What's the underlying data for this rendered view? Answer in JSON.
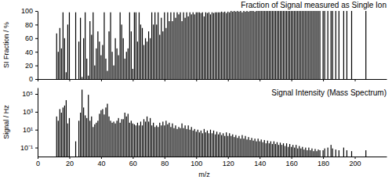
{
  "chart_data": [
    {
      "type": "bar",
      "title": "Fraction of Signal measured as Single Ion",
      "ylabel": "SI Fraction / %",
      "color": "#000000",
      "xlim": [
        0,
        220
      ],
      "xticks": [
        0,
        20,
        40,
        60,
        80,
        100,
        120,
        140,
        160,
        180,
        200
      ],
      "ylim": [
        0,
        100
      ],
      "yticks": [
        0,
        20,
        40,
        60,
        80,
        100
      ],
      "tick_labels": "y",
      "x": [
        12,
        13,
        14,
        15,
        16,
        17,
        18,
        19,
        20,
        24,
        26,
        27,
        28,
        29,
        30,
        31,
        32,
        33,
        34,
        35,
        36,
        37,
        38,
        39,
        40,
        41,
        42,
        43,
        44,
        45,
        46,
        47,
        48,
        49,
        50,
        51,
        52,
        53,
        54,
        55,
        56,
        57,
        58,
        59,
        60,
        61,
        62,
        63,
        64,
        65,
        66,
        67,
        68,
        69,
        70,
        71,
        72,
        73,
        74,
        75,
        76,
        77,
        78,
        79,
        80,
        81,
        82,
        83,
        84,
        85,
        86,
        87,
        88,
        89,
        90,
        91,
        92,
        93,
        94,
        95,
        96,
        97,
        98,
        99,
        100,
        101,
        102,
        103,
        104,
        105,
        106,
        107,
        108,
        109,
        110,
        111,
        112,
        113,
        114,
        115,
        116,
        117,
        118,
        119,
        120,
        121,
        122,
        123,
        124,
        125,
        126,
        127,
        128,
        129,
        130,
        131,
        132,
        133,
        134,
        135,
        136,
        137,
        138,
        139,
        140,
        141,
        142,
        143,
        144,
        145,
        146,
        147,
        148,
        149,
        150,
        151,
        152,
        153,
        154,
        155,
        156,
        157,
        158,
        159,
        160,
        161,
        162,
        163,
        164,
        165,
        166,
        167,
        168,
        169,
        170,
        171,
        172,
        173,
        174,
        175,
        176,
        177,
        178,
        180,
        181,
        183,
        185,
        186,
        188,
        190,
        193,
        195,
        198,
        207
      ],
      "values": [
        67,
        40,
        75,
        45,
        98,
        60,
        10,
        80,
        98,
        98,
        55,
        90,
        3,
        60,
        98,
        30,
        5,
        85,
        65,
        98,
        20,
        45,
        70,
        55,
        35,
        50,
        98,
        30,
        12,
        70,
        98,
        40,
        20,
        60,
        45,
        35,
        98,
        80,
        60,
        30,
        40,
        45,
        98,
        70,
        15,
        98,
        98,
        55,
        98,
        80,
        75,
        50,
        60,
        55,
        70,
        60,
        98,
        80,
        98,
        80,
        98,
        65,
        90,
        70,
        98,
        75,
        98,
        85,
        98,
        85,
        98,
        90,
        98,
        95,
        98,
        85,
        98,
        90,
        98,
        92,
        98,
        95,
        98,
        95,
        98,
        98,
        98,
        97,
        98,
        92,
        98,
        97,
        98,
        95,
        98,
        97,
        98,
        98,
        98,
        98,
        99,
        98,
        99,
        97,
        99,
        98,
        100,
        99,
        100,
        99,
        100,
        99,
        100,
        98,
        100,
        99,
        100,
        99,
        100,
        100,
        100,
        99,
        100,
        100,
        100,
        100,
        100,
        100,
        100,
        100,
        100,
        100,
        100,
        100,
        100,
        100,
        100,
        100,
        100,
        100,
        100,
        100,
        100,
        100,
        100,
        100,
        100,
        100,
        100,
        100,
        100,
        100,
        100,
        100,
        100,
        100,
        100,
        100,
        100,
        100,
        100,
        100,
        100,
        100,
        100,
        100,
        100,
        100,
        100,
        100,
        100,
        100,
        100,
        100
      ]
    },
    {
      "type": "bar",
      "title": "Signal Intensity (Mass Spectrum)",
      "ylabel": "Signal / Hz",
      "xlabel": "m/z",
      "color": "#000000",
      "log": "y",
      "xlim": [
        0,
        220
      ],
      "xticks": [
        0,
        20,
        40,
        60,
        80,
        100,
        120,
        140,
        160,
        180,
        200
      ],
      "ylim": [
        0.01,
        500000
      ],
      "yticks": [
        {
          "value": 0.1,
          "label": "10⁻¹"
        },
        {
          "value": 10,
          "label": "10¹"
        },
        {
          "value": 1000,
          "label": "10³"
        },
        {
          "value": 100000,
          "label": "10⁵"
        }
      ],
      "x": [
        12,
        13,
        14,
        15,
        16,
        17,
        18,
        19,
        20,
        24,
        26,
        27,
        28,
        29,
        30,
        31,
        32,
        33,
        34,
        35,
        36,
        37,
        38,
        39,
        40,
        41,
        42,
        43,
        44,
        45,
        46,
        47,
        48,
        49,
        50,
        51,
        52,
        53,
        54,
        55,
        56,
        57,
        58,
        59,
        60,
        61,
        62,
        63,
        64,
        65,
        66,
        67,
        68,
        69,
        70,
        71,
        72,
        73,
        74,
        75,
        76,
        77,
        78,
        79,
        80,
        81,
        82,
        83,
        84,
        85,
        86,
        87,
        88,
        89,
        90,
        91,
        92,
        93,
        94,
        95,
        96,
        97,
        98,
        99,
        100,
        101,
        102,
        103,
        104,
        105,
        106,
        107,
        108,
        109,
        110,
        111,
        112,
        113,
        114,
        115,
        116,
        117,
        118,
        119,
        120,
        121,
        122,
        123,
        124,
        125,
        126,
        127,
        128,
        129,
        130,
        131,
        132,
        133,
        134,
        135,
        136,
        137,
        138,
        139,
        140,
        141,
        142,
        143,
        144,
        145,
        146,
        147,
        148,
        149,
        150,
        151,
        152,
        153,
        154,
        155,
        156,
        157,
        158,
        159,
        160,
        161,
        162,
        163,
        164,
        165,
        166,
        167,
        168,
        169,
        170,
        171,
        172,
        173,
        174,
        175,
        176,
        177,
        178,
        180,
        181,
        183,
        185,
        186,
        188,
        190,
        193,
        195,
        198,
        207
      ],
      "values": [
        300,
        100,
        2000,
        800,
        3000,
        5000,
        20000,
        50,
        200,
        0.5,
        100,
        800,
        300000,
        3000,
        400,
        200,
        80000,
        100,
        300,
        20,
        40,
        60,
        100,
        600,
        1500,
        2000,
        500,
        3000,
        8000,
        300,
        100,
        60,
        80,
        50,
        100,
        200,
        60,
        150,
        150,
        800,
        300,
        600,
        60,
        100,
        50,
        40,
        30,
        60,
        30,
        80,
        30,
        150,
        80,
        300,
        80,
        200,
        30,
        60,
        20,
        30,
        20,
        60,
        30,
        80,
        30,
        100,
        40,
        60,
        20,
        50,
        15,
        30,
        12,
        20,
        15,
        50,
        15,
        30,
        12,
        30,
        10,
        20,
        8,
        12,
        6,
        10,
        5,
        8,
        4,
        12,
        5,
        8,
        4,
        10,
        4,
        8,
        3,
        6,
        3,
        5,
        2.5,
        4,
        2,
        5,
        2,
        4,
        2,
        3,
        1.5,
        2.5,
        1.2,
        2,
        1,
        2.5,
        1,
        2,
        0.8,
        1.5,
        0.7,
        1.2,
        0.6,
        1,
        0.5,
        1,
        0.5,
        0.8,
        0.4,
        0.7,
        0.3,
        0.6,
        0.3,
        0.5,
        0.25,
        0.5,
        0.25,
        0.4,
        0.2,
        0.35,
        0.2,
        0.3,
        0.15,
        0.3,
        0.12,
        0.25,
        0.12,
        0.2,
        0.1,
        0.2,
        0.08,
        0.15,
        0.08,
        0.12,
        0.06,
        0.1,
        0.05,
        0.1,
        0.05,
        0.08,
        0.04,
        0.07,
        0.04,
        0.06,
        0.05,
        0.05,
        0.08,
        0.1,
        0.2,
        0.08,
        0.06,
        0.05,
        0.1,
        0.05,
        0.04,
        0.05
      ]
    }
  ]
}
